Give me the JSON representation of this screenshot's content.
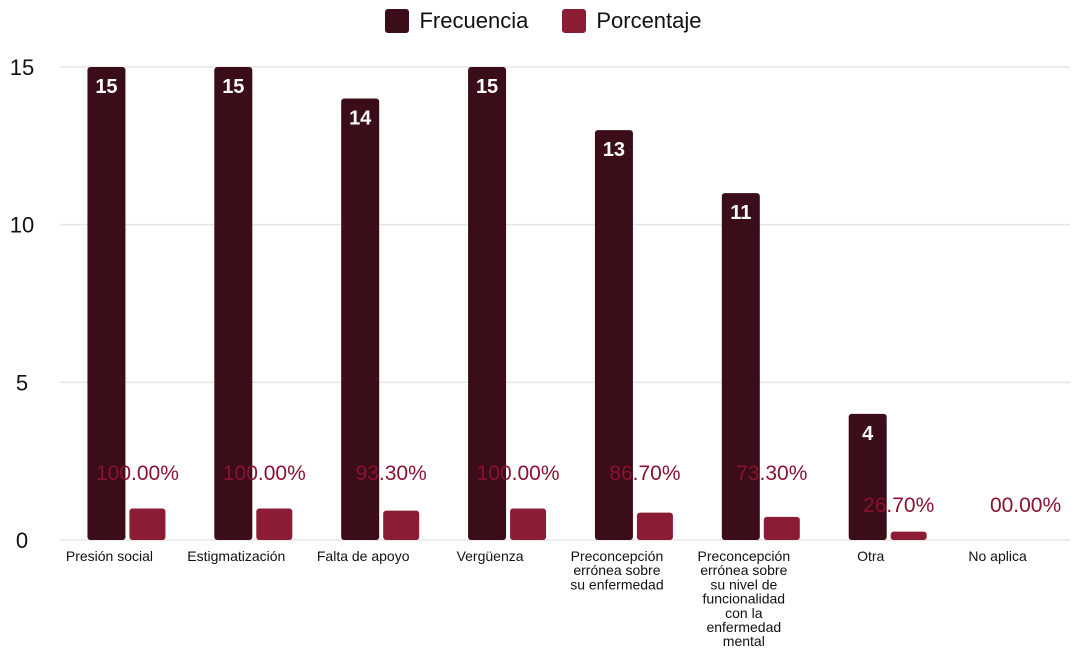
{
  "legend": {
    "frecuencia": "Frecuencia",
    "porcentaje": "Porcentaje"
  },
  "colors": {
    "frecuencia": "#3b0d18",
    "porcentaje": "#8c1c34",
    "percent_label": "#8a1230",
    "grid": "#e6e6e6"
  },
  "chart_data": {
    "type": "bar",
    "categories": [
      "Presión social",
      "Estigmatización",
      "Falta de apoyo",
      "Vergüenza",
      "Preconcepción errónea sobre su enfermedad",
      "Preconcepción errónea sobre su nivel de funcionalidad con la enfermedad mental",
      "Otra",
      "No aplica"
    ],
    "category_lines": [
      [
        "Presión social"
      ],
      [
        "Estigmatización"
      ],
      [
        "Falta de apoyo"
      ],
      [
        "Vergüenza"
      ],
      [
        "Preconcepción",
        "errónea sobre",
        "su enfermedad"
      ],
      [
        "Preconcepción",
        "errónea sobre",
        "su nivel de",
        "funcionalidad",
        "con la",
        "enfermedad",
        "mental"
      ],
      [
        "Otra"
      ],
      [
        "No aplica"
      ]
    ],
    "series": [
      {
        "name": "Frecuencia",
        "values": [
          15,
          15,
          14,
          15,
          13,
          11,
          4,
          0
        ],
        "labels": [
          "15",
          "15",
          "14",
          "15",
          "13",
          "11",
          "4",
          ""
        ]
      },
      {
        "name": "Porcentaje",
        "values": [
          1.0,
          1.0,
          0.933,
          1.0,
          0.867,
          0.733,
          0.267,
          0
        ],
        "labels": [
          "100.00%",
          "100.00%",
          "93.30%",
          "100.00%",
          "86.70%",
          "73.30%",
          "26.70%",
          "00.00%"
        ]
      }
    ],
    "yticks": [
      "0",
      "5",
      "10",
      "15"
    ],
    "ylim": [
      0,
      15
    ],
    "grid": true,
    "legend_position": "top-center"
  }
}
